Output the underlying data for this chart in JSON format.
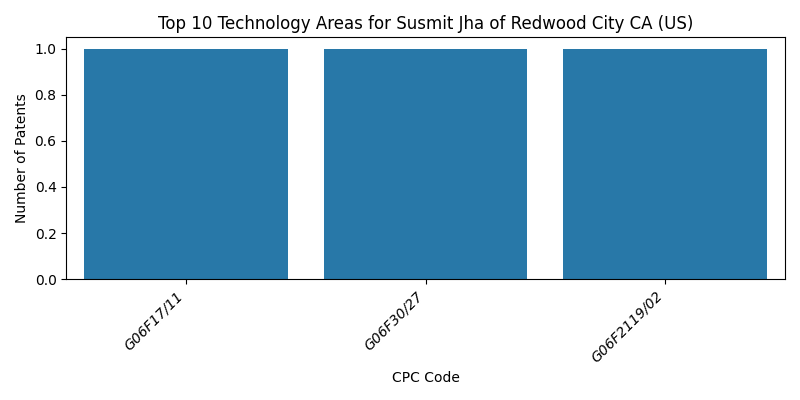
{
  "title": "Top 10 Technology Areas for Susmit Jha of Redwood City CA (US)",
  "xlabel": "CPC Code",
  "ylabel": "Number of Patents",
  "categories": [
    "G06F17/11",
    "G06F30/27",
    "G06F2119/02"
  ],
  "values": [
    1,
    1,
    1
  ],
  "bar_color": "#2878a8",
  "ylim": [
    0,
    1.05
  ],
  "yticks": [
    0.0,
    0.2,
    0.4,
    0.6,
    0.8,
    1.0
  ],
  "bar_width": 0.85,
  "figsize": [
    8.0,
    4.0
  ],
  "dpi": 100
}
